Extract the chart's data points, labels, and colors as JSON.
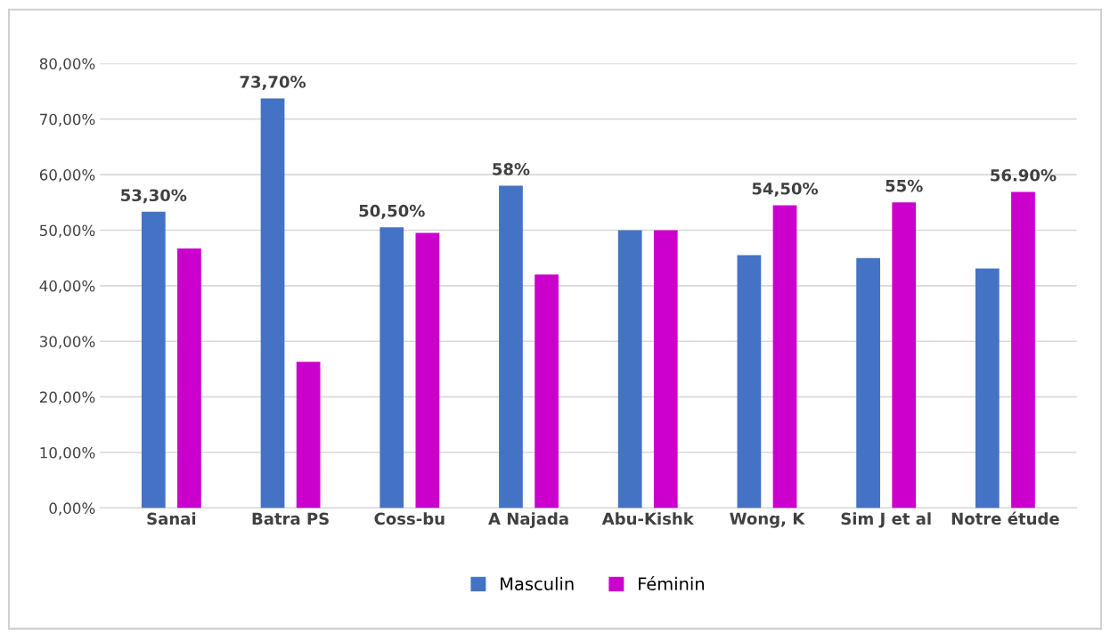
{
  "chart_data": {
    "type": "bar",
    "categories": [
      "Sanai",
      "Batra PS",
      "Coss-bu",
      "A Najada",
      "Abu-Kishk",
      "Wong, K",
      "Sim J et al",
      "Notre étude"
    ],
    "series": [
      {
        "name": "Masculin",
        "color": "#4472c4",
        "values": [
          53.3,
          73.7,
          50.5,
          58,
          50,
          45.5,
          45,
          43.1
        ],
        "value_labels": [
          "53,30%",
          "73,70%",
          "50,50%",
          "58%",
          null,
          null,
          null,
          null
        ]
      },
      {
        "name": "Féminin",
        "color": "#cc00cc",
        "values": [
          46.7,
          26.3,
          49.5,
          42,
          50,
          54.5,
          55,
          56.9
        ],
        "value_labels": [
          null,
          null,
          null,
          null,
          null,
          "54,50%",
          "55%",
          "56.90%"
        ]
      }
    ],
    "ylim": [
      0,
      80
    ],
    "yticks": [
      {
        "value": 0,
        "label": "0,00%"
      },
      {
        "value": 10,
        "label": "10,00%"
      },
      {
        "value": 20,
        "label": "20,00%"
      },
      {
        "value": 30,
        "label": "30,00%"
      },
      {
        "value": 40,
        "label": "40,00%"
      },
      {
        "value": 50,
        "label": "50,00%"
      },
      {
        "value": 60,
        "label": "60,00%"
      },
      {
        "value": 70,
        "label": "70,00%"
      },
      {
        "value": 80,
        "label": "80,00%"
      }
    ],
    "grid": "y",
    "legend": "bottom"
  }
}
